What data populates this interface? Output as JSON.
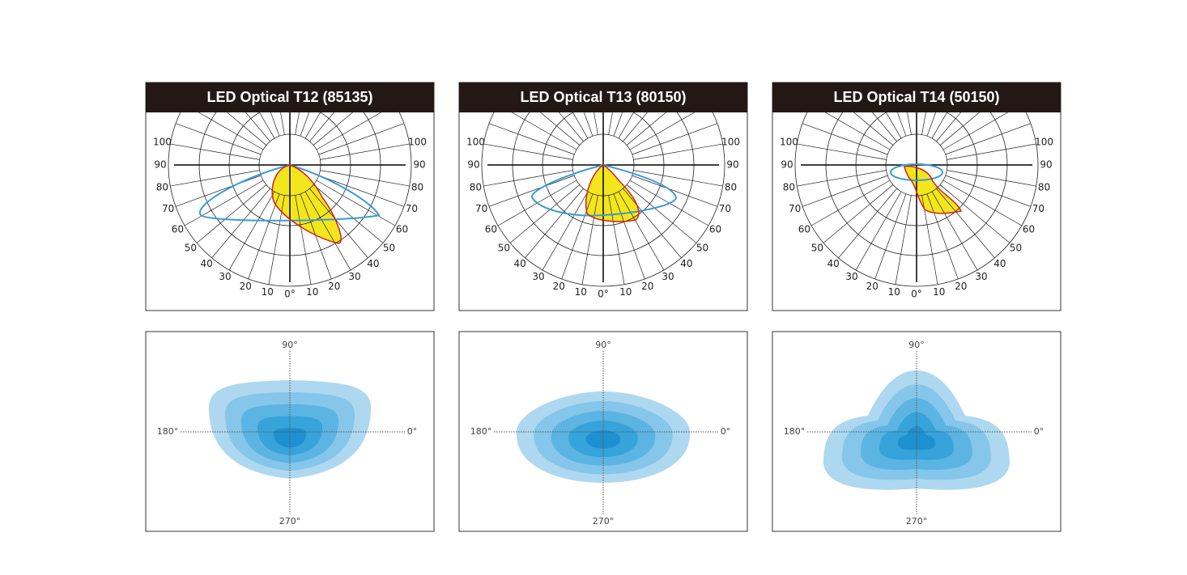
{
  "panels": [
    {
      "title": "LED Optical T12 (85135)"
    },
    {
      "title": "LED Optical T13 (80150)"
    },
    {
      "title": "LED Optical T14 (50150)"
    }
  ],
  "polar_labels": {
    "left": [
      "100",
      "90",
      "80",
      "70",
      "60",
      "50",
      "40",
      "30",
      "20",
      "10"
    ],
    "center": "0°",
    "right": [
      "10",
      "20",
      "30",
      "40",
      "50",
      "60",
      "70",
      "80",
      "90",
      "100"
    ]
  },
  "iso_labels": {
    "top": "90°",
    "left": "180°",
    "right": "0°",
    "bottom": "270°"
  }
}
